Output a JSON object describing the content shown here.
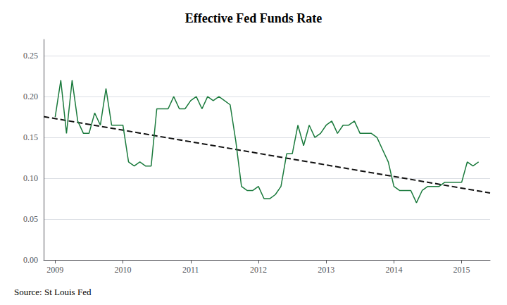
{
  "chart_data": {
    "type": "line",
    "title": "Effective Fed Funds Rate",
    "annotation": "Source: St Louis Fed",
    "xlim": [
      2008.83,
      2015.42
    ],
    "xticks": [
      2009,
      2010,
      2011,
      2012,
      2013,
      2014,
      2015
    ],
    "ylim": [
      0.0,
      0.27
    ],
    "yticks": [
      {
        "value": 0,
        "label": "0.00"
      },
      0.05,
      {
        "value": 0.1,
        "label": "0.10"
      },
      0.15,
      {
        "value": 0.2,
        "label": "0.20"
      },
      0.25
    ],
    "grid": "y",
    "series": [
      {
        "color": "#1a7a3c",
        "line_style": "solid",
        "x": [
          2009.0,
          2009.083,
          2009.167,
          2009.25,
          2009.333,
          2009.417,
          2009.5,
          2009.583,
          2009.667,
          2009.75,
          2009.833,
          2009.917,
          2010.0,
          2010.083,
          2010.167,
          2010.25,
          2010.333,
          2010.417,
          2010.5,
          2010.583,
          2010.667,
          2010.75,
          2010.833,
          2010.917,
          2011.0,
          2011.083,
          2011.167,
          2011.25,
          2011.333,
          2011.417,
          2011.5,
          2011.583,
          2011.667,
          2011.75,
          2011.833,
          2011.917,
          2012.0,
          2012.083,
          2012.167,
          2012.25,
          2012.333,
          2012.417,
          2012.5,
          2012.583,
          2012.667,
          2012.75,
          2012.833,
          2012.917,
          2013.0,
          2013.083,
          2013.167,
          2013.25,
          2013.333,
          2013.417,
          2013.5,
          2013.583,
          2013.667,
          2013.75,
          2013.833,
          2013.917,
          2014.0,
          2014.083,
          2014.167,
          2014.25,
          2014.333,
          2014.417,
          2014.5,
          2014.583,
          2014.667,
          2014.75,
          2014.833,
          2014.917,
          2015.0,
          2015.083,
          2015.167,
          2015.25
        ],
        "values": [
          0.175,
          0.22,
          0.155,
          0.22,
          0.17,
          0.155,
          0.155,
          0.18,
          0.165,
          0.21,
          0.165,
          0.165,
          0.165,
          0.12,
          0.115,
          0.12,
          0.115,
          0.115,
          0.185,
          0.185,
          0.185,
          0.2,
          0.185,
          0.185,
          0.195,
          0.2,
          0.185,
          0.2,
          0.195,
          0.2,
          0.195,
          0.19,
          0.145,
          0.09,
          0.085,
          0.085,
          0.09,
          0.075,
          0.075,
          0.08,
          0.09,
          0.13,
          0.13,
          0.165,
          0.14,
          0.165,
          0.15,
          0.155,
          0.165,
          0.17,
          0.155,
          0.165,
          0.165,
          0.17,
          0.155,
          0.155,
          0.155,
          0.15,
          0.135,
          0.12,
          0.09,
          0.085,
          0.085,
          0.085,
          0.07,
          0.085,
          0.09,
          0.09,
          0.09,
          0.095,
          0.095,
          0.095,
          0.095,
          0.12,
          0.115,
          0.12
        ]
      },
      {
        "color": "#111111",
        "line_style": "dashed",
        "x": [
          2008.83,
          2015.42
        ],
        "values": [
          0.1755,
          0.082
        ]
      }
    ]
  }
}
